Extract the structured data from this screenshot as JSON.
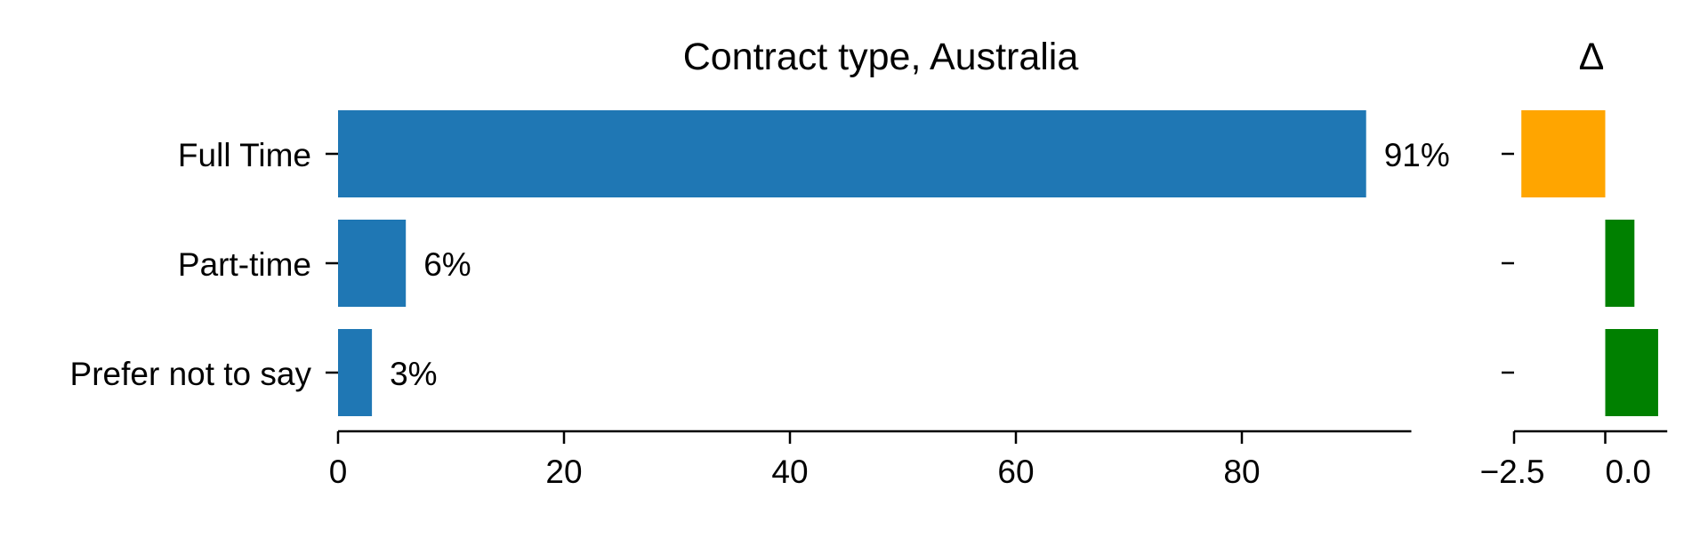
{
  "chart_data": [
    {
      "type": "bar",
      "orientation": "horizontal",
      "title": "Contract type, Australia",
      "xlabel": "",
      "ylabel": "",
      "categories": [
        "Full Time",
        "Part-time",
        "Prefer not to say"
      ],
      "values": [
        91,
        6,
        3
      ],
      "value_labels": [
        "91%",
        "6%",
        "3%"
      ],
      "xlim": [
        0,
        95
      ],
      "xticks": [
        0,
        20,
        40,
        60,
        80
      ],
      "xtick_labels": [
        "0",
        "20",
        "40",
        "60",
        "80"
      ],
      "bar_color": "#1f77b4",
      "grid": false,
      "legend": "none"
    },
    {
      "type": "bar",
      "orientation": "horizontal",
      "title": "Δ",
      "xlabel": "",
      "ylabel": "",
      "categories": [
        "Full Time",
        "Part-time",
        "Prefer not to say"
      ],
      "values": [
        -2.3,
        0.8,
        1.45
      ],
      "xlim": [
        -2.5,
        1.7
      ],
      "xticks": [
        -2.5,
        0.0
      ],
      "xtick_labels": [
        "−2.5",
        "0.0"
      ],
      "colors": {
        "negative": "#ffa500",
        "positive": "#008000"
      },
      "grid": false,
      "legend": "none"
    }
  ]
}
